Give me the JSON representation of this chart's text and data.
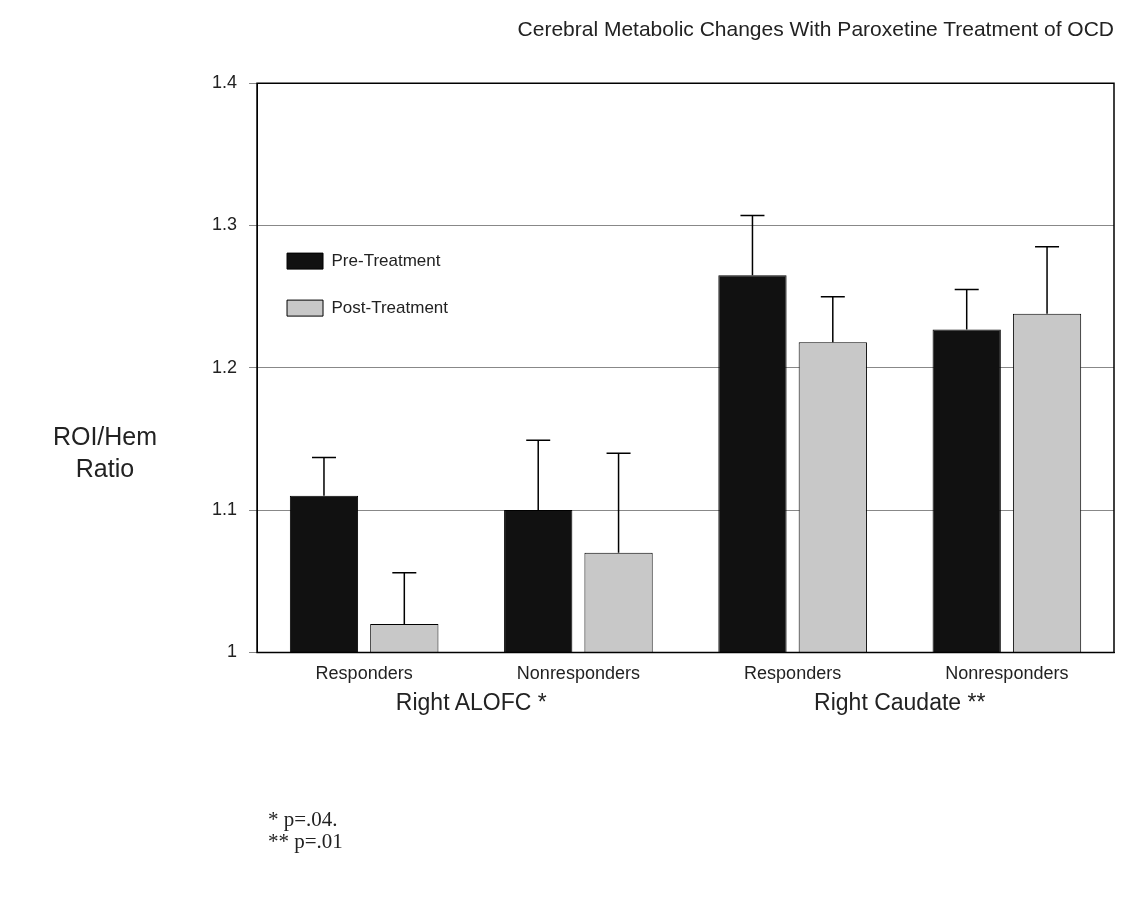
{
  "chart_data": {
    "type": "bar",
    "title": "Cerebral Metabolic Changes With Paroxetine Treatment of OCD",
    "ylabel": "ROI/Hem Ratio",
    "categories": [
      "Responders",
      "Nonresponders",
      "Responders",
      "Nonresponders"
    ],
    "series": [
      {
        "name": "Pre-Treatment",
        "color": "#111111",
        "values": [
          1.11,
          1.1,
          1.265,
          1.227
        ],
        "errors": [
          [
            1.11,
            1.137
          ],
          [
            1.1,
            1.149
          ],
          [
            1.265,
            1.307
          ],
          [
            1.227,
            1.255
          ]
        ]
      },
      {
        "name": "Post-Treatment",
        "color": "#c8c8c8",
        "values": [
          1.02,
          1.07,
          1.218,
          1.238
        ],
        "errors": [
          [
            1.02,
            1.056
          ],
          [
            1.07,
            1.14
          ],
          [
            1.218,
            1.25
          ],
          [
            1.238,
            1.285
          ]
        ]
      }
    ],
    "ylim": [
      1,
      1.4
    ],
    "yticks": [
      1,
      1.1,
      1.2,
      1.3,
      1.4
    ],
    "grid": "y",
    "legend": "top",
    "annotations": [
      "Right ALOFC *",
      "Right Caudate **",
      "* p=.04.",
      "** p=.01"
    ]
  }
}
